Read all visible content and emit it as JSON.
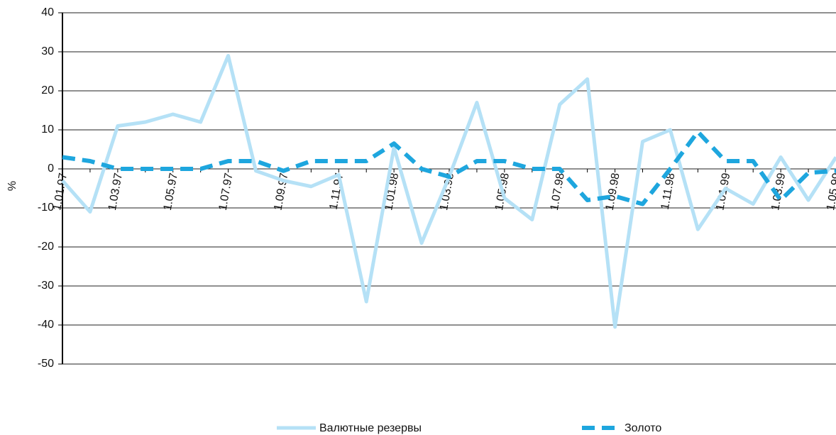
{
  "chart_data": {
    "type": "line",
    "y_label": "%",
    "categories": [
      "1.01.97",
      null,
      "1.03.97",
      null,
      "1.05.97",
      null,
      "1.07.97",
      null,
      "1.09.97",
      null,
      "1.11.97",
      null,
      "1.01.98",
      null,
      "1.03.98",
      null,
      "1.05.98",
      null,
      "1.07.98",
      null,
      "1.09.98",
      null,
      "1.11.98",
      null,
      "1.01.99",
      null,
      "1.03.99",
      null,
      "1.05.99"
    ],
    "series": [
      {
        "name": "Валютные резервы",
        "color": "#b5e1f6",
        "dashed": false,
        "values": [
          -3,
          -11,
          11,
          12,
          14,
          12,
          29,
          -0.5,
          -3,
          -4.5,
          -1.5,
          -34,
          5.5,
          -19,
          -2,
          17,
          -7.5,
          -13,
          16.5,
          23,
          -40.5,
          7,
          10,
          -15.5,
          -5,
          -9,
          3,
          -8,
          3
        ]
      },
      {
        "name": "Золото",
        "color": "#1ea6de",
        "dashed": true,
        "values": [
          3,
          2,
          0,
          0,
          0,
          0,
          2,
          2,
          -0.5,
          2,
          2,
          2,
          6.5,
          0,
          -2,
          2,
          2,
          0,
          0,
          -8,
          -7,
          -9,
          0,
          9.5,
          2,
          2,
          -8,
          -1,
          -0.5
        ]
      }
    ],
    "ylim": [
      -50,
      40
    ],
    "yticks": [
      -50,
      -40,
      -30,
      -20,
      -10,
      0,
      10,
      20,
      30,
      40
    ],
    "grid": true
  }
}
